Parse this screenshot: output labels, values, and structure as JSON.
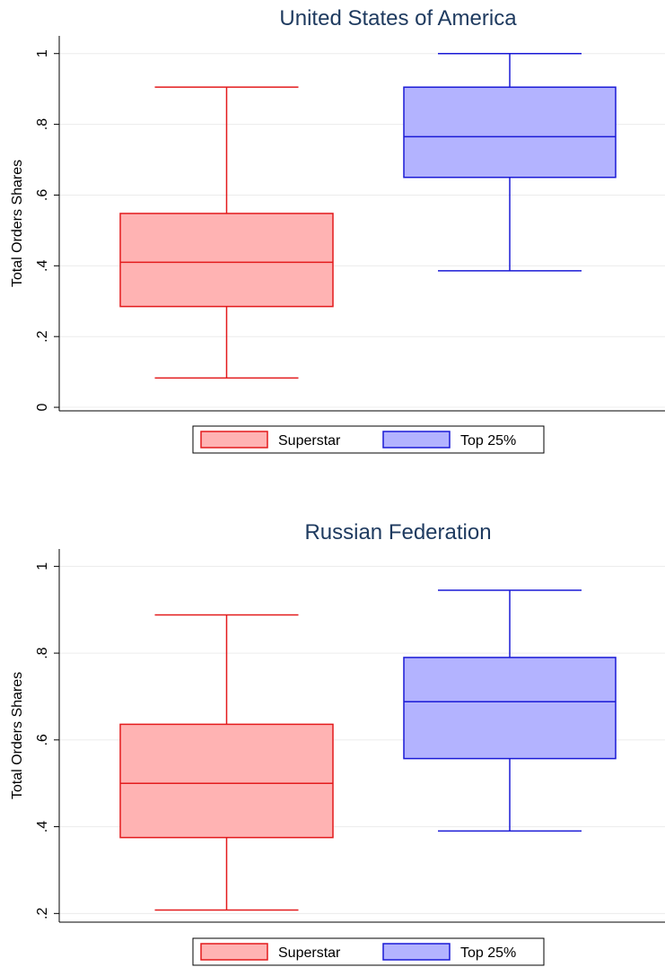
{
  "chart_data": [
    {
      "type": "box",
      "title": "United States of America",
      "xlabel": "",
      "ylabel": "Total Orders Shares",
      "ylim": [
        -0.01,
        1.05
      ],
      "yticks": [
        0,
        0.2,
        0.4,
        0.6,
        0.8,
        1
      ],
      "ytick_labels": [
        "0",
        ".2",
        ".4",
        ".6",
        ".8",
        "1"
      ],
      "grid": true,
      "legend_position": "bottom",
      "series": [
        {
          "name": "Superstar",
          "color": "#e31a1c",
          "fill": "#ffb3b3",
          "whisker_low": 0.083,
          "q1": 0.285,
          "median": 0.41,
          "q3": 0.548,
          "whisker_high": 0.905
        },
        {
          "name": "Top 25%",
          "color": "#1a1ad6",
          "fill": "#b3b3ff",
          "whisker_low": 0.386,
          "q1": 0.65,
          "median": 0.765,
          "q3": 0.905,
          "whisker_high": 1.0
        }
      ]
    },
    {
      "type": "box",
      "title": "Russian Federation",
      "xlabel": "",
      "ylabel": "Total Orders Shares",
      "ylim": [
        0.18,
        1.04
      ],
      "yticks": [
        0.2,
        0.4,
        0.6,
        0.8,
        1
      ],
      "ytick_labels": [
        ".2",
        ".4",
        ".6",
        ".8",
        "1"
      ],
      "grid": true,
      "legend_position": "bottom",
      "series": [
        {
          "name": "Superstar",
          "color": "#e31a1c",
          "fill": "#ffb3b3",
          "whisker_low": 0.208,
          "q1": 0.375,
          "median": 0.5,
          "q3": 0.636,
          "whisker_high": 0.888
        },
        {
          "name": "Top 25%",
          "color": "#1a1ad6",
          "fill": "#b3b3ff",
          "whisker_low": 0.39,
          "q1": 0.557,
          "median": 0.688,
          "q3": 0.79,
          "whisker_high": 0.945
        }
      ]
    }
  ]
}
